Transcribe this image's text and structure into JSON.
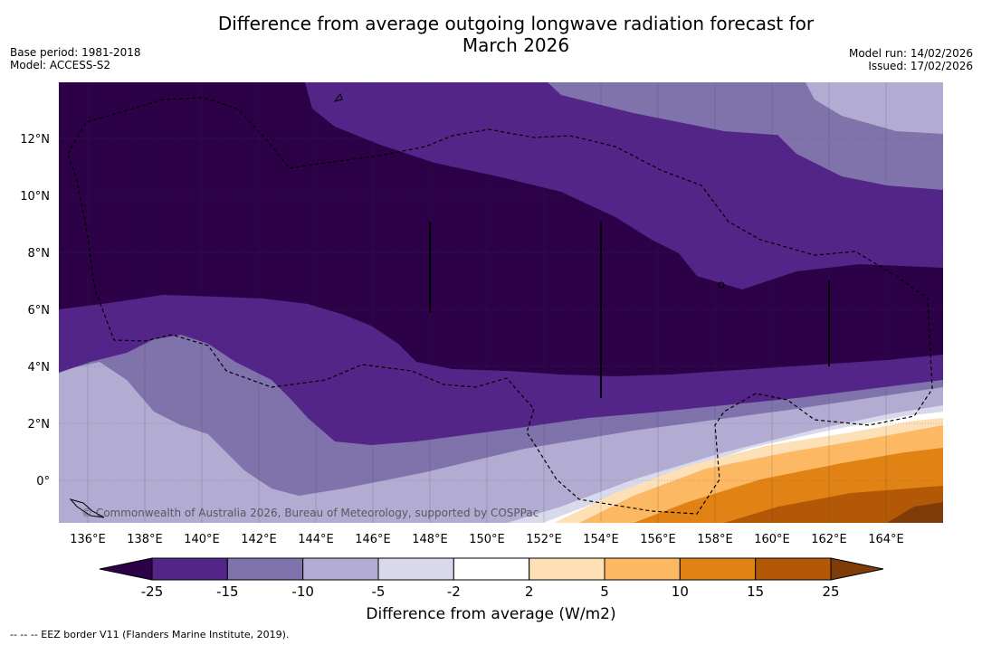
{
  "title_line1": "Difference from average outgoing longwave radiation forecast for",
  "title_line2": "March 2026",
  "base_period": "Base period: 1981-2018",
  "model": "Model: ACCESS-S2",
  "model_run": "Model run: 14/02/2026",
  "issued": "Issued: 17/02/2026",
  "copyright": "© Commonwealth of Australia 2026, Bureau of Meteorology, supported by COSPPac",
  "colorbar_label": "Difference from average (W/m2)",
  "footnote": "-- -- -- EEZ border V11 (Flanders Marine Institute, 2019).",
  "lon_labels": [
    "136°E",
    "138°E",
    "140°E",
    "142°E",
    "144°E",
    "146°E",
    "148°E",
    "150°E",
    "152°E",
    "154°E",
    "156°E",
    "158°E",
    "160°E",
    "162°E",
    "164°E"
  ],
  "lat_labels": [
    "12°N",
    "10°N",
    "8°N",
    "6°N",
    "4°N",
    "2°N",
    "0°"
  ],
  "colorbar": {
    "ticks": [
      "-25",
      "-15",
      "-10",
      "-5",
      "-2",
      "2",
      "5",
      "10",
      "15",
      "25"
    ],
    "colors": [
      "#2c0148",
      "#542588",
      "#8073ac",
      "#b2abd2",
      "#d8daeb",
      "#ffffff",
      "#fee0b6",
      "#fdb863",
      "#e08214",
      "#b35806",
      "#7f3b08"
    ]
  }
}
